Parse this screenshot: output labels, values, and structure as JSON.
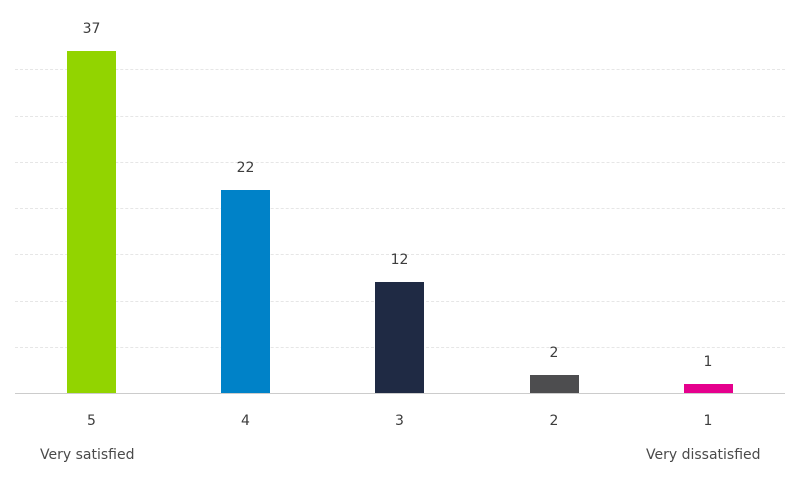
{
  "chart_data": {
    "type": "bar",
    "title": "",
    "xlabel": "",
    "ylabel": "",
    "categories": [
      "5",
      "4",
      "3",
      "2",
      "1"
    ],
    "values": [
      37,
      22,
      12,
      2,
      1
    ],
    "colors": [
      "#92d400",
      "#0082c8",
      "#1f2a44",
      "#4d4d4f",
      "#e5008d"
    ],
    "ylim": [
      0,
      40
    ],
    "grid": true,
    "grid_step": 5,
    "data_labels": true,
    "annotations": {
      "left": "Very satisfied",
      "right": "Very dissatisfied"
    }
  }
}
